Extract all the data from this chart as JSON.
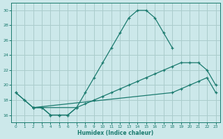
{
  "xlabel": "Humidex (Indice chaleur)",
  "background_color": "#cce8ea",
  "grid_color": "#aacccc",
  "line_color": "#1a7a6e",
  "xlim": [
    -0.5,
    23.5
  ],
  "ylim": [
    15.0,
    31.0
  ],
  "xticks": [
    0,
    1,
    2,
    3,
    4,
    5,
    6,
    7,
    8,
    9,
    10,
    11,
    12,
    13,
    14,
    15,
    16,
    17,
    18,
    19,
    20,
    21,
    22,
    23
  ],
  "yticks": [
    16,
    18,
    20,
    22,
    24,
    26,
    28,
    30
  ],
  "series": [
    {
      "x": [
        0,
        1,
        2,
        3,
        4,
        5,
        6,
        7,
        8,
        9,
        10,
        11,
        12,
        13,
        14,
        15,
        16,
        17,
        18
      ],
      "y": [
        19,
        18,
        17,
        17,
        16,
        16,
        16,
        17,
        19,
        21,
        23,
        25,
        27,
        29,
        30,
        30,
        29,
        27,
        25
      ]
    },
    {
      "x": [
        2,
        7,
        8,
        9,
        10,
        11,
        12,
        13,
        14,
        15,
        16,
        17,
        18,
        19,
        20,
        21,
        22,
        23
      ],
      "y": [
        17,
        17,
        17.5,
        18,
        18.5,
        19,
        19.5,
        20,
        20.5,
        21,
        21.5,
        22,
        22.5,
        23,
        23,
        23,
        22,
        20
      ]
    },
    {
      "x": [
        2,
        18,
        19,
        20,
        21,
        22,
        23
      ],
      "y": [
        17,
        19,
        19.5,
        20,
        20.5,
        21,
        19
      ]
    },
    {
      "x": [
        0,
        1,
        2,
        3,
        4,
        5,
        6,
        7
      ],
      "y": [
        19,
        18,
        17,
        17,
        16,
        16,
        16,
        17
      ]
    }
  ]
}
